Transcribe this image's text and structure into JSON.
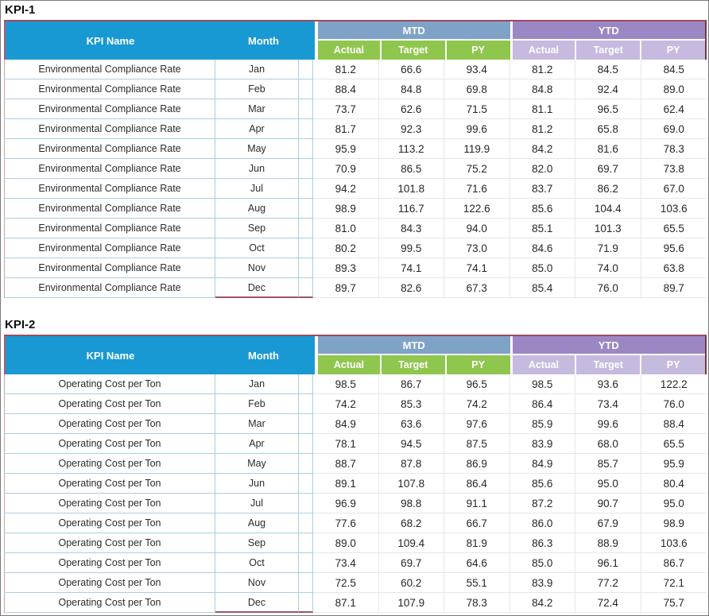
{
  "colors": {
    "header_blue": "#1899d3",
    "mtd_band": "#7ea3c7",
    "mtd_sub": "#8fc64d",
    "ytd_band": "#9c87c5",
    "ytd_sub": "#c6badf",
    "teal_border": "#a7d0df",
    "maroon_outline": "#9e4a5c"
  },
  "tables": [
    {
      "title": "KPI-1",
      "headers": {
        "kpi_name": "KPI Name",
        "month": "Month",
        "mtd": "MTD",
        "ytd": "YTD",
        "sub": [
          "Actual",
          "Target",
          "PY"
        ]
      },
      "rows": [
        {
          "kpi": "Environmental Compliance Rate",
          "month": "Jan",
          "values": [
            "81.2",
            "66.6",
            "93.4",
            "81.2",
            "84.5",
            "84.5"
          ]
        },
        {
          "kpi": "Environmental Compliance Rate",
          "month": "Feb",
          "values": [
            "88.4",
            "84.8",
            "69.8",
            "84.8",
            "92.4",
            "89.0"
          ]
        },
        {
          "kpi": "Environmental Compliance Rate",
          "month": "Mar",
          "values": [
            "73.7",
            "62.6",
            "71.5",
            "81.1",
            "96.5",
            "62.4"
          ]
        },
        {
          "kpi": "Environmental Compliance Rate",
          "month": "Apr",
          "values": [
            "81.7",
            "92.3",
            "99.6",
            "81.2",
            "65.8",
            "69.0"
          ]
        },
        {
          "kpi": "Environmental Compliance Rate",
          "month": "May",
          "values": [
            "95.9",
            "113.2",
            "119.9",
            "84.2",
            "81.6",
            "78.3"
          ]
        },
        {
          "kpi": "Environmental Compliance Rate",
          "month": "Jun",
          "values": [
            "70.9",
            "86.5",
            "75.2",
            "82.0",
            "69.7",
            "73.8"
          ]
        },
        {
          "kpi": "Environmental Compliance Rate",
          "month": "Jul",
          "values": [
            "94.2",
            "101.8",
            "71.6",
            "83.7",
            "86.2",
            "67.0"
          ]
        },
        {
          "kpi": "Environmental Compliance Rate",
          "month": "Aug",
          "values": [
            "98.9",
            "116.7",
            "122.6",
            "85.6",
            "104.4",
            "103.6"
          ]
        },
        {
          "kpi": "Environmental Compliance Rate",
          "month": "Sep",
          "values": [
            "81.0",
            "84.3",
            "94.0",
            "85.1",
            "101.3",
            "65.5"
          ]
        },
        {
          "kpi": "Environmental Compliance Rate",
          "month": "Oct",
          "values": [
            "80.2",
            "99.5",
            "73.0",
            "84.6",
            "71.9",
            "95.6"
          ]
        },
        {
          "kpi": "Environmental Compliance Rate",
          "month": "Nov",
          "values": [
            "89.3",
            "74.1",
            "74.1",
            "85.0",
            "74.0",
            "63.8"
          ]
        },
        {
          "kpi": "Environmental Compliance Rate",
          "month": "Dec",
          "values": [
            "89.7",
            "82.6",
            "67.3",
            "85.4",
            "76.0",
            "89.7"
          ]
        }
      ]
    },
    {
      "title": "KPI-2",
      "headers": {
        "kpi_name": "KPI Name",
        "month": "Month",
        "mtd": "MTD",
        "ytd": "YTD",
        "sub": [
          "Actual",
          "Target",
          "PY"
        ]
      },
      "rows": [
        {
          "kpi": "Operating Cost per Ton",
          "month": "Jan",
          "values": [
            "98.5",
            "86.7",
            "96.5",
            "98.5",
            "93.6",
            "122.2"
          ]
        },
        {
          "kpi": "Operating Cost per Ton",
          "month": "Feb",
          "values": [
            "74.2",
            "85.3",
            "74.2",
            "86.4",
            "73.4",
            "76.0"
          ]
        },
        {
          "kpi": "Operating Cost per Ton",
          "month": "Mar",
          "values": [
            "84.9",
            "63.6",
            "97.6",
            "85.9",
            "99.6",
            "88.4"
          ]
        },
        {
          "kpi": "Operating Cost per Ton",
          "month": "Apr",
          "values": [
            "78.1",
            "94.5",
            "87.5",
            "83.9",
            "68.0",
            "65.5"
          ]
        },
        {
          "kpi": "Operating Cost per Ton",
          "month": "May",
          "values": [
            "88.7",
            "87.8",
            "86.9",
            "84.9",
            "85.7",
            "95.9"
          ]
        },
        {
          "kpi": "Operating Cost per Ton",
          "month": "Jun",
          "values": [
            "89.1",
            "107.8",
            "86.4",
            "85.6",
            "95.0",
            "80.4"
          ]
        },
        {
          "kpi": "Operating Cost per Ton",
          "month": "Jul",
          "values": [
            "96.9",
            "98.8",
            "91.1",
            "87.2",
            "90.7",
            "95.0"
          ]
        },
        {
          "kpi": "Operating Cost per Ton",
          "month": "Aug",
          "values": [
            "77.6",
            "68.2",
            "66.7",
            "86.0",
            "67.9",
            "98.9"
          ]
        },
        {
          "kpi": "Operating Cost per Ton",
          "month": "Sep",
          "values": [
            "89.0",
            "109.4",
            "81.9",
            "86.3",
            "88.9",
            "103.6"
          ]
        },
        {
          "kpi": "Operating Cost per Ton",
          "month": "Oct",
          "values": [
            "73.4",
            "69.7",
            "64.6",
            "85.0",
            "96.1",
            "86.7"
          ]
        },
        {
          "kpi": "Operating Cost per Ton",
          "month": "Nov",
          "values": [
            "72.5",
            "60.2",
            "55.1",
            "83.9",
            "77.2",
            "72.1"
          ]
        },
        {
          "kpi": "Operating Cost per Ton",
          "month": "Dec",
          "values": [
            "87.1",
            "107.9",
            "78.3",
            "84.2",
            "72.4",
            "75.7"
          ]
        }
      ]
    }
  ]
}
